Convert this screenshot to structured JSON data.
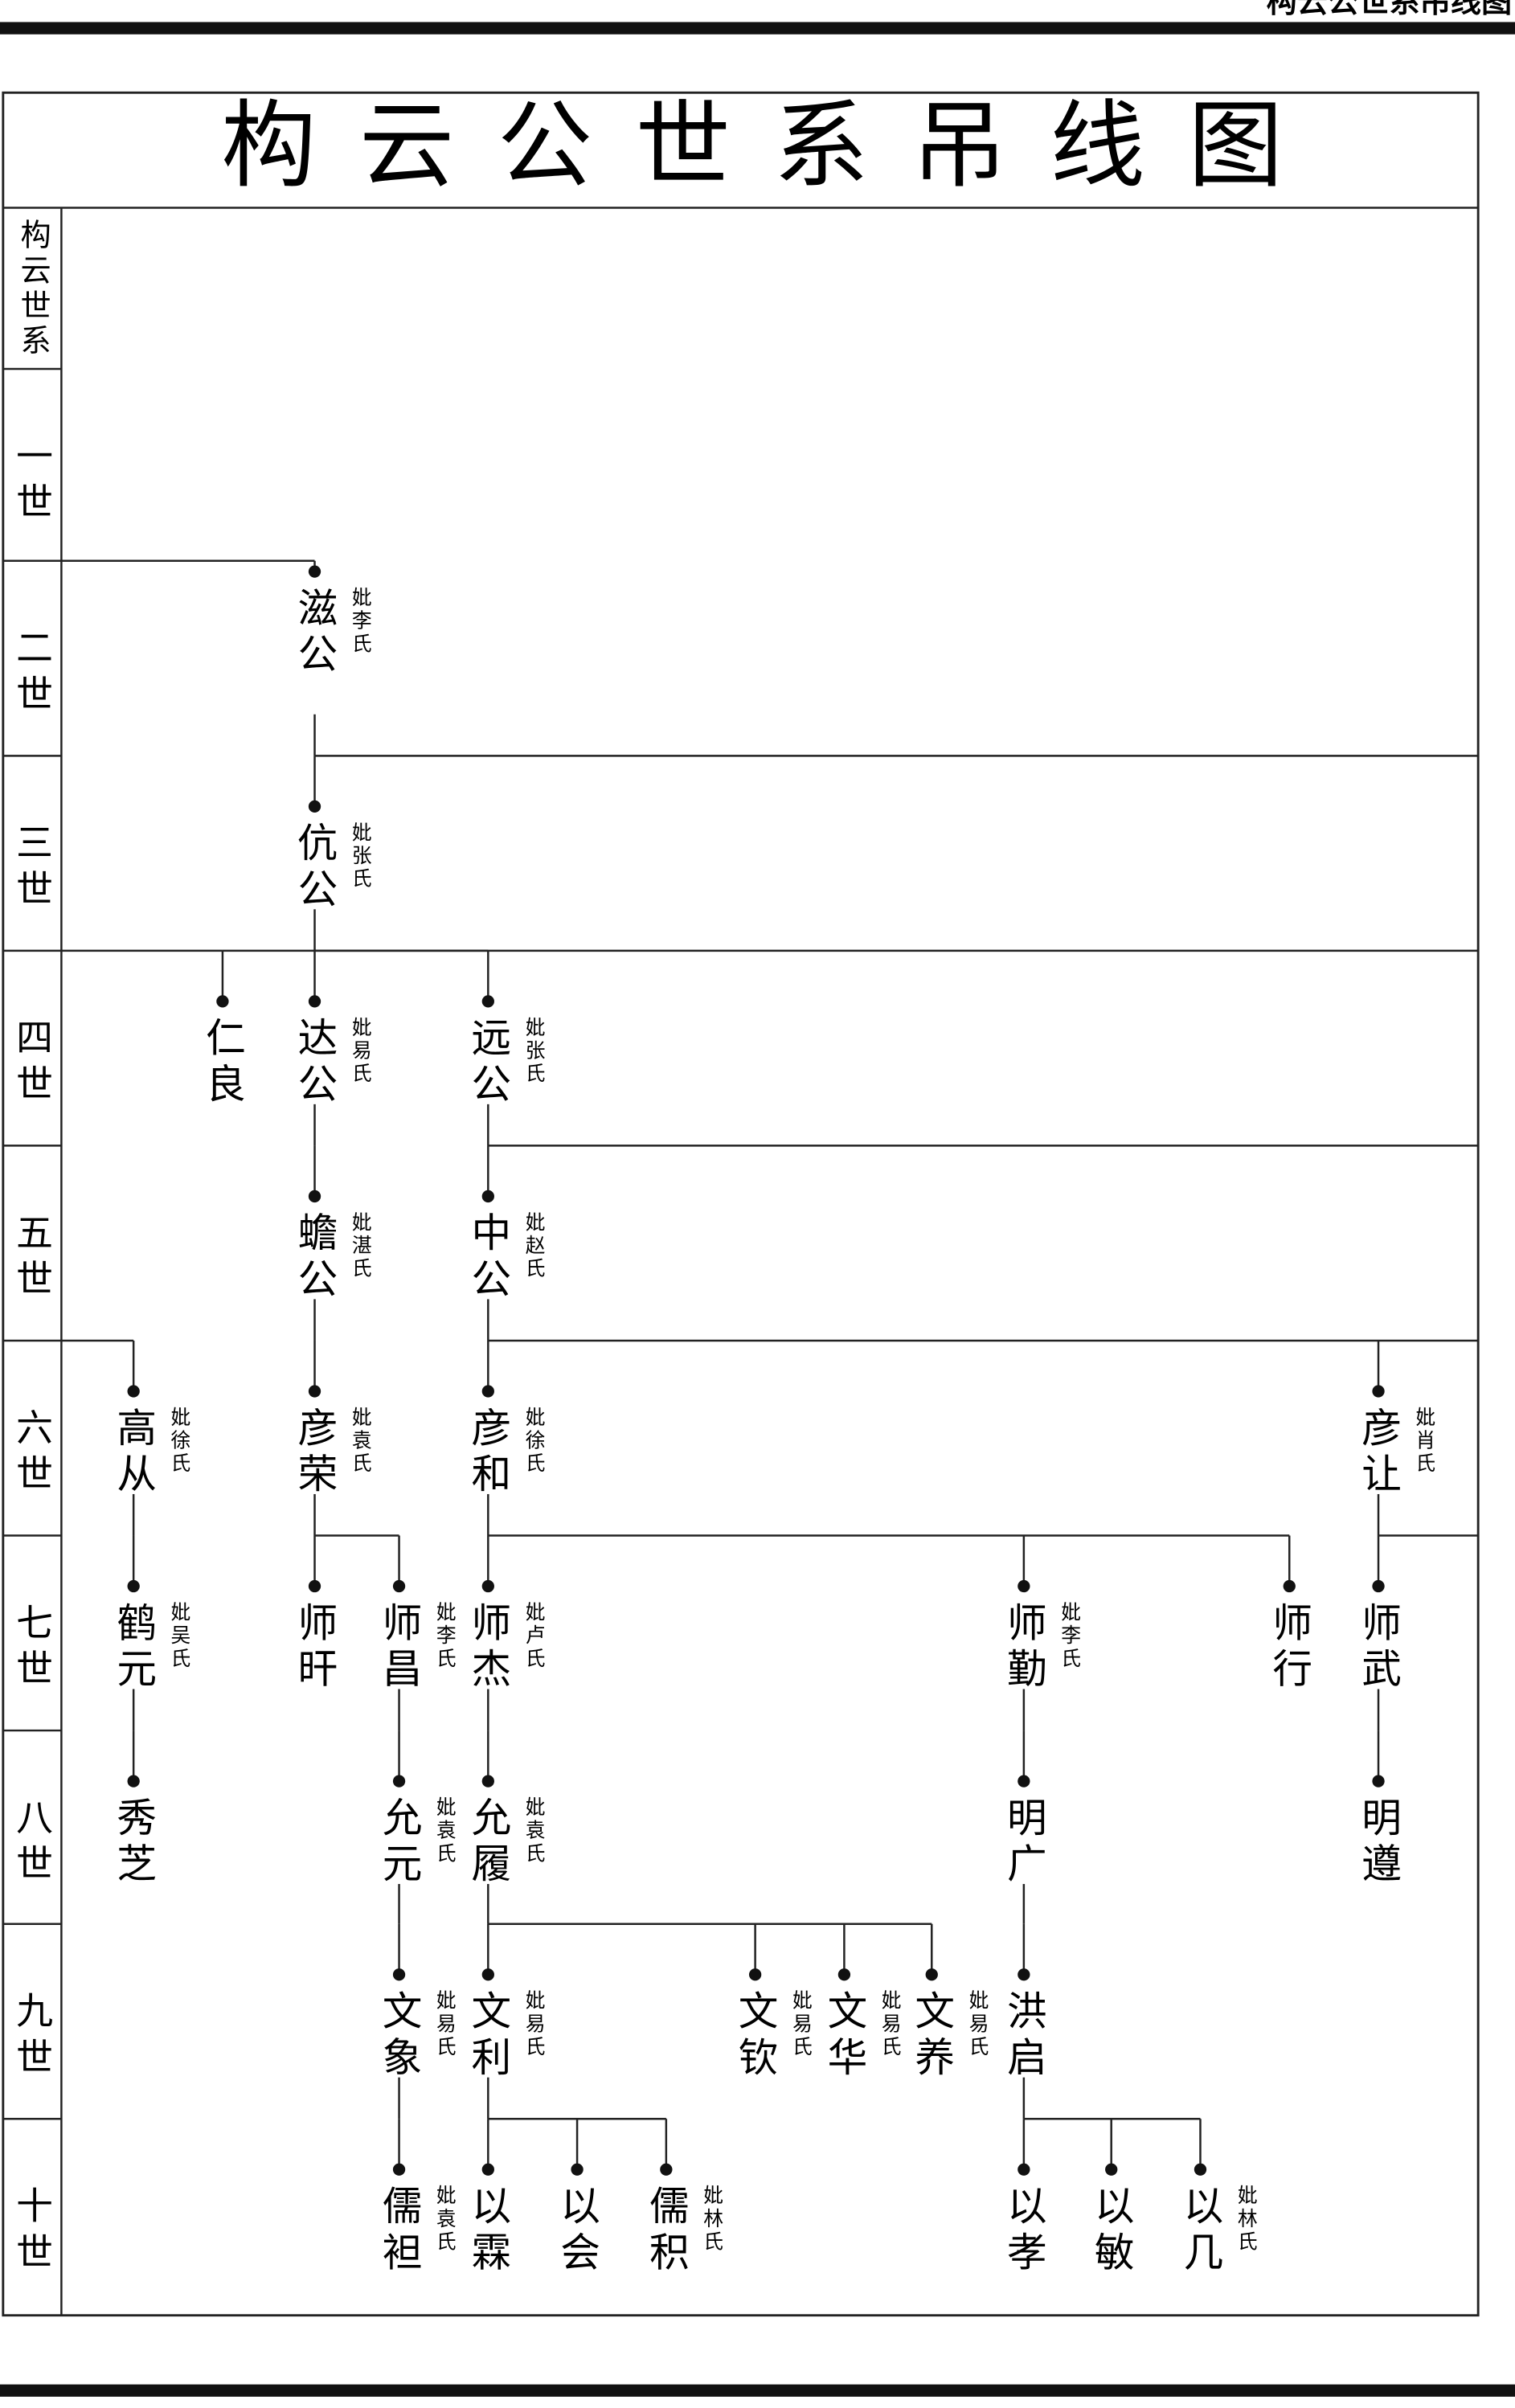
{
  "header": "构云公世系吊线图",
  "title": "构云公世系吊线图",
  "generations": [
    "构云世系",
    "一世",
    "二世",
    "三世",
    "四世",
    "五世",
    "六世",
    "七世",
    "八世",
    "九世",
    "十世"
  ],
  "nodes": [
    {
      "name": "滋公",
      "spouse": "妣李氏"
    },
    {
      "name": "伉公",
      "spouse": "妣张氏"
    },
    {
      "name": "仁良"
    },
    {
      "name": "达公",
      "spouse": "妣易氏"
    },
    {
      "name": "远公",
      "spouse": "妣张氏"
    },
    {
      "name": "蟾公",
      "spouse": "妣湛氏"
    },
    {
      "name": "中公",
      "spouse": "妣赵氏"
    },
    {
      "name": "高从",
      "spouse": "妣徐氏"
    },
    {
      "name": "彦荣",
      "spouse": "妣袁氏"
    },
    {
      "name": "彦和",
      "spouse": "妣徐氏"
    },
    {
      "name": "彦让",
      "spouse": "妣肖氏"
    },
    {
      "name": "鹤元",
      "spouse": "妣吴氏"
    },
    {
      "name": "师旰"
    },
    {
      "name": "师昌",
      "spouse": "妣李氏"
    },
    {
      "name": "师杰",
      "spouse": "妣卢氏"
    },
    {
      "name": "师勤",
      "spouse": "妣李氏"
    },
    {
      "name": "师行"
    },
    {
      "name": "师武"
    },
    {
      "name": "秀芝"
    },
    {
      "name": "允元",
      "spouse": "妣袁氏"
    },
    {
      "name": "允履",
      "spouse": "妣袁氏"
    },
    {
      "name": "明广"
    },
    {
      "name": "明遵"
    },
    {
      "name": "文象",
      "spouse": "妣易氏"
    },
    {
      "name": "文利",
      "spouse": "妣易氏"
    },
    {
      "name": "文钦",
      "spouse": "妣易氏"
    },
    {
      "name": "文华",
      "spouse": "妣易氏"
    },
    {
      "name": "文养",
      "spouse": "妣易氏"
    },
    {
      "name": "洪启"
    },
    {
      "name": "儒袒",
      "spouse": "妣袁氏"
    },
    {
      "name": "以霖"
    },
    {
      "name": "以会"
    },
    {
      "name": "儒积",
      "spouse": "妣林氏"
    },
    {
      "name": "以孝"
    },
    {
      "name": "以敏"
    },
    {
      "name": "以几",
      "spouse": "妣林氏"
    }
  ]
}
